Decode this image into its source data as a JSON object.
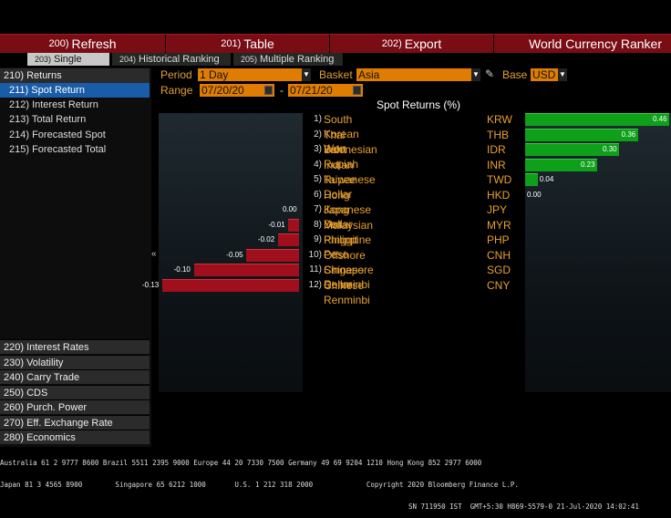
{
  "toolbar": {
    "refresh_num": "200)",
    "refresh": "Refresh",
    "table_num": "201)",
    "table": "Table",
    "export_num": "202)",
    "export": "Export",
    "title": "World Currency Ranker"
  },
  "tabs": [
    {
      "num": "203)",
      "label": "Single Ranking"
    },
    {
      "num": "204)",
      "label": "Historical Ranking"
    },
    {
      "num": "205)",
      "label": "Multiple Ranking"
    }
  ],
  "sidebar": {
    "returns": "210) Returns",
    "items": [
      "211) Spot Return",
      "212) Interest Return",
      "213) Total Return",
      "214) Forecasted Spot",
      "215) Forecasted Total"
    ],
    "categories": [
      "220) Interest Rates",
      "230) Volatility",
      "240) Carry Trade",
      "250) CDS",
      "260) Purch. Power",
      "270) Eff. Exchange Rate",
      "280) Economics"
    ]
  },
  "controls": {
    "period_label": "Period",
    "period_value": "1 Day",
    "basket_label": "Basket",
    "basket_value": "Asia",
    "base_label": "Base",
    "base_value": "USD",
    "range_label": "Range",
    "range_from": "07/20/20",
    "range_sep": "-",
    "range_to": "07/21/20"
  },
  "chart_data": {
    "type": "bar",
    "title": "Spot Returns (%)",
    "rows": [
      {
        "rank": "1)",
        "name": "South Korean Won",
        "code": "KRW",
        "value": 0.46
      },
      {
        "rank": "2)",
        "name": "Thai Baht",
        "code": "THB",
        "value": 0.36
      },
      {
        "rank": "3)",
        "name": "Indonesian Rupiah",
        "code": "IDR",
        "value": 0.3
      },
      {
        "rank": "4)",
        "name": "Indian Rupee",
        "code": "INR",
        "value": 0.23
      },
      {
        "rank": "5)",
        "name": "Taiwanese Dollar",
        "code": "TWD",
        "value": 0.04
      },
      {
        "rank": "6)",
        "name": "Hong Kong Dollar",
        "code": "HKD",
        "value": 0.0
      },
      {
        "rank": "7)",
        "name": "Japanese Yen",
        "code": "JPY",
        "value": 0.0
      },
      {
        "rank": "8)",
        "name": "Malaysian Ringgit",
        "code": "MYR",
        "value": -0.01
      },
      {
        "rank": "9)",
        "name": "Philippine Peso",
        "code": "PHP",
        "value": -0.02
      },
      {
        "rank": "10)",
        "name": "Offshore Chinese Renminbi",
        "code": "CNH",
        "value": -0.05
      },
      {
        "rank": "11)",
        "name": "Singapore Dollar",
        "code": "SGD",
        "value": -0.1
      },
      {
        "rank": "12)",
        "name": "Chinese Renminbi",
        "code": "CNY",
        "value": -0.13
      }
    ],
    "positive_color": "#0fa01a",
    "negative_color": "#a0101c"
  },
  "footer": {
    "line1": "Australia 61 2 9777 8600 Brazil 5511 2395 9000 Europe 44 20 7330 7500 Germany 49 69 9204 1210 Hong Kong 852 2977 6000",
    "line2": "Japan 81 3 4565 8900        Singapore 65 6212 1000       U.S. 1 212 318 2000             Copyright 2020 Bloomberg Finance L.P.",
    "line3": "SN 711950 IST  GMT+5:30 H869-5579-0 21-Jul-2020 14:02:41"
  }
}
